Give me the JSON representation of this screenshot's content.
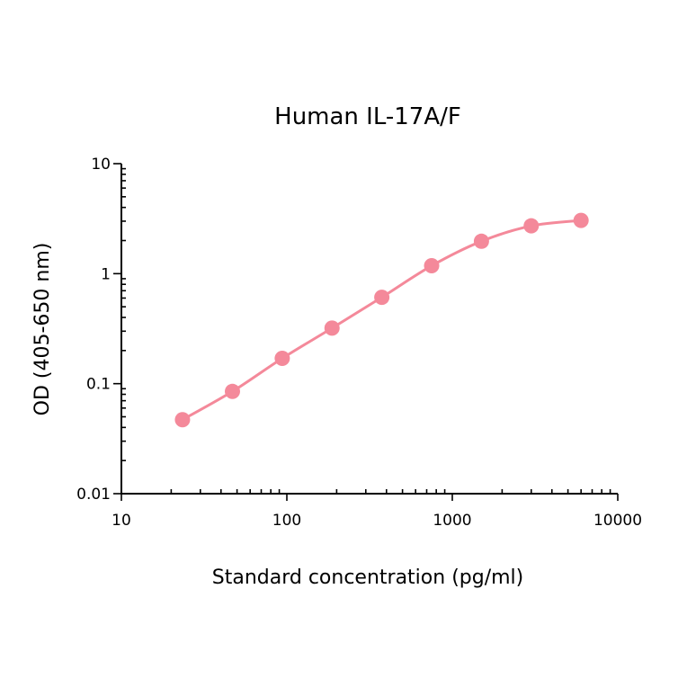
{
  "chart_data": {
    "type": "line",
    "title": "Human IL-17A/F",
    "xlabel": "Standard concentration (pg/ml)",
    "ylabel": "OD (405-650 nm)",
    "x_scale": "log",
    "y_scale": "log",
    "xlim": [
      10,
      10000
    ],
    "ylim": [
      0.01,
      10
    ],
    "x_ticks": [
      10,
      100,
      1000,
      10000
    ],
    "x_tick_labels": [
      "10",
      "100",
      "1000",
      "10000"
    ],
    "y_ticks": [
      0.01,
      0.1,
      1,
      10
    ],
    "y_tick_labels": [
      "0.01",
      "0.1",
      "1",
      "10"
    ],
    "grid": false,
    "legend": "none",
    "series": [
      {
        "color": "#f4899a",
        "x": [
          23.4,
          46.9,
          93.8,
          187.5,
          375,
          750,
          1500,
          3000,
          6000
        ],
        "y": [
          0.047,
          0.085,
          0.17,
          0.32,
          0.61,
          1.18,
          1.97,
          2.72,
          3.05
        ]
      }
    ]
  }
}
